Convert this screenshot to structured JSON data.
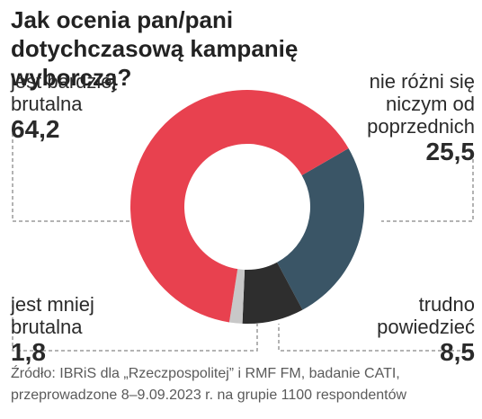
{
  "chart_data": {
    "type": "pie",
    "title": "Jak ocenia pan/pani dotychczasową kampanię wyborczą?",
    "slices": [
      {
        "label": "jest bardziej brutalna",
        "value": 64.2,
        "display": "64,2",
        "color": "#e8414f"
      },
      {
        "label": "nie różni się niczym od poprzednich",
        "value": 25.5,
        "display": "25,5",
        "color": "#3a5566"
      },
      {
        "label": "trudno powiedzieć",
        "value": 8.5,
        "display": "8,5",
        "color": "#2e2e2e"
      },
      {
        "label": "jest mniej brutalna",
        "value": 1.8,
        "display": "1,8",
        "color": "#c8c8c8"
      }
    ],
    "donut": true,
    "legend": "none"
  },
  "labels": {
    "brutal_line1": "jest bardziej",
    "brutal_line2": "brutalna",
    "same_line1": "nie różni się",
    "same_line2": "niczym od",
    "same_line3": "poprzednich",
    "less_line1": "jest mniej",
    "less_line2": "brutalna",
    "hard_line1": "trudno",
    "hard_line2": "powiedzieć"
  },
  "source": {
    "line1": "Źródło: IBRiS dla „Rzeczpospolitej” i RMF FM, badanie CATI,",
    "line2": "przeprowadzone 8–9.09.2023 r. na grupie 1100 respondentów"
  }
}
